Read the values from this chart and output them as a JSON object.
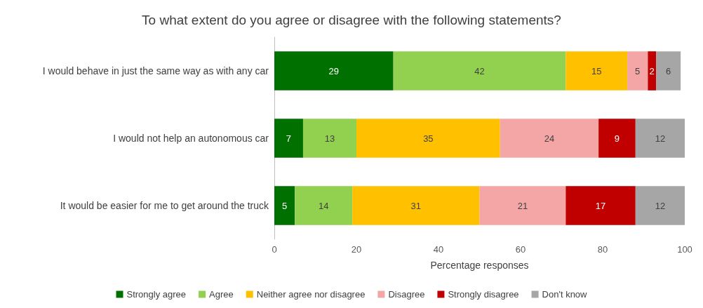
{
  "chart_data": {
    "type": "bar",
    "orientation": "horizontal",
    "stacked": true,
    "title": "To what extent do you agree or disagree with the following statements?",
    "xlabel": "Percentage responses",
    "categories": [
      "I would behave in just the same way as with any car",
      "I would not help an autonomous car",
      "It would be easier for me to get around the truck"
    ],
    "series": [
      {
        "name": "Strongly agree",
        "color": "#007000",
        "values": [
          29,
          7,
          5
        ]
      },
      {
        "name": "Agree",
        "color": "#92d050",
        "values": [
          42,
          13,
          14
        ]
      },
      {
        "name": "Neither agree nor disagree",
        "color": "#ffc000",
        "values": [
          15,
          35,
          31
        ]
      },
      {
        "name": "Disagree",
        "color": "#f4a6a6",
        "values": [
          5,
          24,
          21
        ]
      },
      {
        "name": "Strongly disagree",
        "color": "#c00000",
        "values": [
          2,
          9,
          17
        ]
      },
      {
        "name": "Don't know",
        "color": "#a6a6a6",
        "values": [
          6,
          12,
          12
        ]
      }
    ],
    "xlim": [
      0,
      100
    ],
    "xticks": [
      0,
      20,
      40,
      60,
      80,
      100
    ],
    "grid": false,
    "legend": "bottom",
    "data_labels": true
  }
}
